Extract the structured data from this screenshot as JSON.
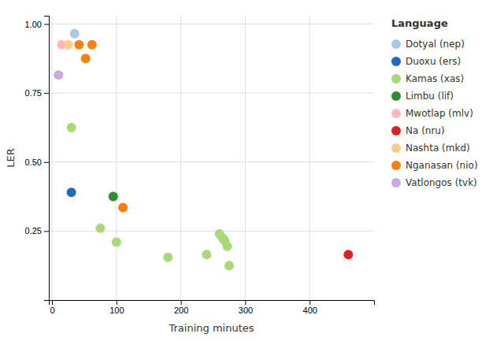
{
  "chart_data": {
    "type": "scatter",
    "xlabel": "Training minutes",
    "ylabel": "LER",
    "legend_title": "Language",
    "legend": "right",
    "grid": true,
    "xlim": [
      -5,
      500
    ],
    "ylim": [
      0.0,
      1.03
    ],
    "xticks": [
      0,
      100,
      200,
      300,
      400
    ],
    "yticks": [
      0.25,
      {
        "value": 0.5,
        "label": "0.50"
      },
      0.75,
      {
        "value": 1.0,
        "label": "1.00"
      }
    ],
    "series": [
      {
        "name": "Dotyal (nep)",
        "color": "#a8c8e8",
        "x": [
          35
        ],
        "values": [
          0.965
        ]
      },
      {
        "name": "Duoxu (ers)",
        "color": "#1f6bbf",
        "x": [
          30
        ],
        "values": [
          0.39
        ]
      },
      {
        "name": "Kamas (xas)",
        "color": "#a8d878",
        "x": [
          30,
          75,
          100,
          180,
          240,
          260,
          265,
          268,
          272,
          275
        ],
        "values": [
          0.625,
          0.26,
          0.21,
          0.155,
          0.165,
          0.24,
          0.225,
          0.215,
          0.195,
          0.125
        ]
      },
      {
        "name": "Limbu (lif)",
        "color": "#2e8b2e",
        "x": [
          95
        ],
        "values": [
          0.375
        ]
      },
      {
        "name": "Mwotlap (mlv)",
        "color": "#ffb6c1",
        "x": [
          15
        ],
        "values": [
          0.925
        ]
      },
      {
        "name": "Na (nru)",
        "color": "#e02020",
        "x": [
          460
        ],
        "values": [
          0.165
        ]
      },
      {
        "name": "Nashta (mkd)",
        "color": "#ffcc88",
        "x": [
          25
        ],
        "values": [
          0.925
        ]
      },
      {
        "name": "Nganasan (nio)",
        "color": "#ff7f0e",
        "x": [
          42,
          52,
          62,
          110
        ],
        "values": [
          0.925,
          0.875,
          0.925,
          0.335
        ]
      },
      {
        "name": "Vatlongos (tvk)",
        "color": "#c8a8e8",
        "x": [
          10
        ],
        "values": [
          0.815
        ]
      }
    ]
  }
}
